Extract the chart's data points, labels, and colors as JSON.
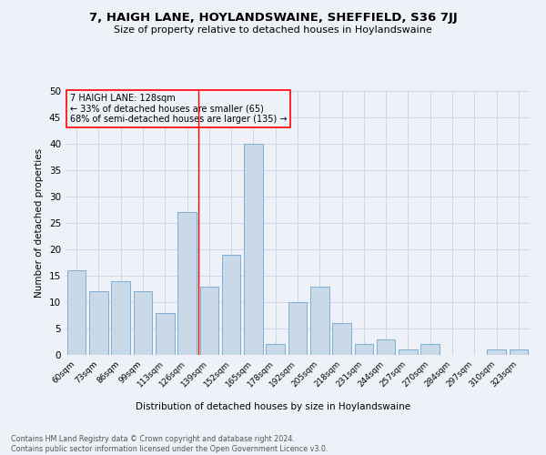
{
  "title1": "7, HAIGH LANE, HOYLANDSWAINE, SHEFFIELD, S36 7JJ",
  "title2": "Size of property relative to detached houses in Hoylandswaine",
  "xlabel": "Distribution of detached houses by size in Hoylandswaine",
  "ylabel": "Number of detached properties",
  "footnote1": "Contains HM Land Registry data © Crown copyright and database right 2024.",
  "footnote2": "Contains public sector information licensed under the Open Government Licence v3.0.",
  "bar_labels": [
    "60sqm",
    "73sqm",
    "86sqm",
    "99sqm",
    "113sqm",
    "126sqm",
    "139sqm",
    "152sqm",
    "165sqm",
    "178sqm",
    "192sqm",
    "205sqm",
    "218sqm",
    "231sqm",
    "244sqm",
    "257sqm",
    "270sqm",
    "284sqm",
    "297sqm",
    "310sqm",
    "323sqm"
  ],
  "bar_values": [
    16,
    12,
    14,
    12,
    8,
    27,
    13,
    19,
    40,
    2,
    10,
    13,
    6,
    2,
    3,
    1,
    2,
    0,
    0,
    1,
    1
  ],
  "bar_color": "#c9d9e8",
  "bar_edgecolor": "#7bafd4",
  "grid_color": "#d0d8e8",
  "vline_x": 5.5,
  "vline_color": "red",
  "annotation_box_text": "7 HAIGH LANE: 128sqm\n← 33% of detached houses are smaller (65)\n68% of semi-detached houses are larger (135) →",
  "annotation_box_color": "red",
  "ylim": [
    0,
    50
  ],
  "yticks": [
    0,
    5,
    10,
    15,
    20,
    25,
    30,
    35,
    40,
    45,
    50
  ],
  "background_color": "#eef2f8"
}
